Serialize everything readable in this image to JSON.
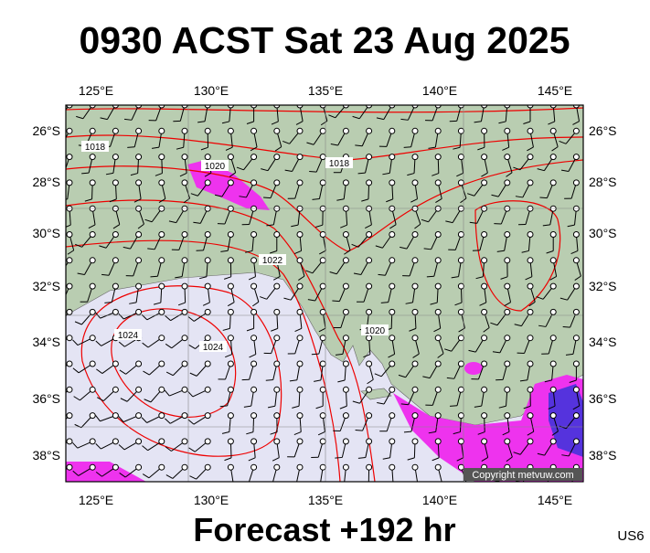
{
  "header": {
    "title": "0930 ACST Sat 23 Aug 2025"
  },
  "map": {
    "lon_labels": [
      "125°E",
      "130°E",
      "135°E",
      "140°E",
      "145°E"
    ],
    "lat_labels": [
      "26°S",
      "28°S",
      "30°S",
      "32°S",
      "34°S",
      "36°S",
      "38°S"
    ],
    "isobar_labels": [
      "1018",
      "1020",
      "1018",
      "1022",
      "1024",
      "1024",
      "1020"
    ],
    "copyright": "Copyright metvuw.com"
  },
  "footer": {
    "forecast": "Forecast +192 hr",
    "code": "US6"
  }
}
